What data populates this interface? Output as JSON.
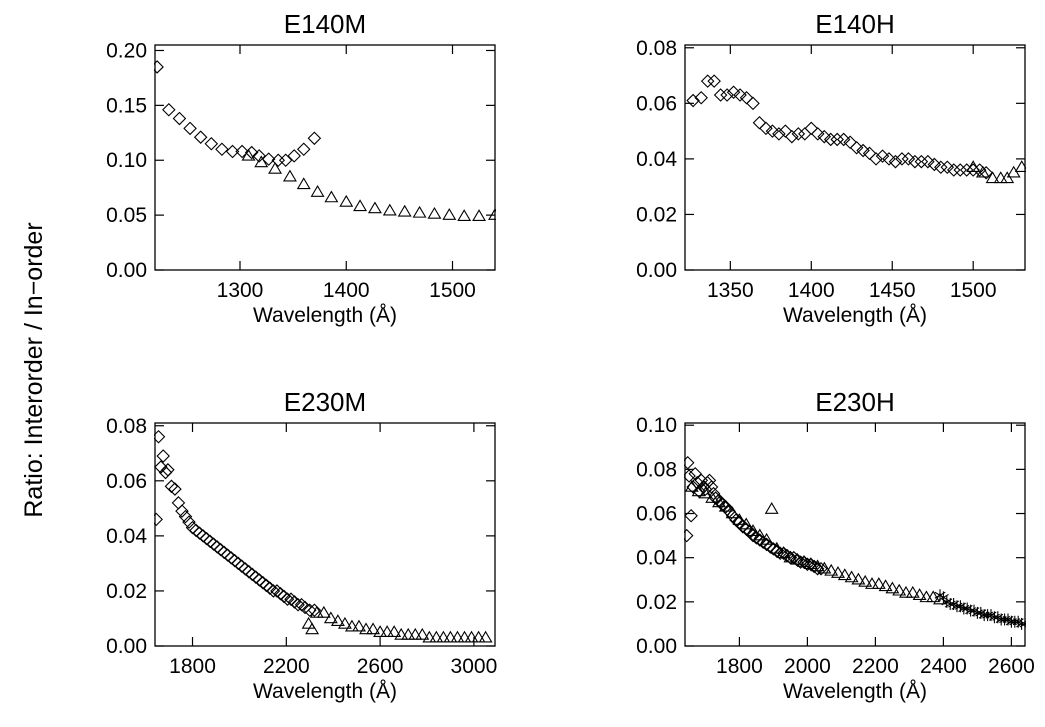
{
  "figure": {
    "ylabel": "Ratio:  Interorder / In−order"
  },
  "chart_data": [
    {
      "type": "scatter",
      "title": "E140M",
      "xlabel": "Wavelength (Å)",
      "ylabel": "",
      "xlim": [
        1220,
        1540
      ],
      "ylim": [
        0,
        0.205
      ],
      "xticks": [
        1300,
        1400,
        1500
      ],
      "xtick_labels": [
        "1300",
        "1400",
        "1500"
      ],
      "yticks": [
        0.0,
        0.05,
        0.1,
        0.15,
        0.2
      ],
      "ytick_labels": [
        "0.00",
        "0.05",
        "0.10",
        "0.15",
        "0.20"
      ],
      "grid": false,
      "series": [
        {
          "marker": "diamond",
          "x": [
            1222,
            1233,
            1243,
            1253,
            1263,
            1273,
            1283,
            1293,
            1302,
            1311,
            1318,
            1327,
            1336,
            1343,
            1351,
            1360,
            1370
          ],
          "y": [
            0.185,
            0.146,
            0.138,
            0.129,
            0.121,
            0.115,
            0.11,
            0.108,
            0.108,
            0.107,
            0.104,
            0.101,
            0.1,
            0.1,
            0.104,
            0.11,
            0.12
          ]
        },
        {
          "marker": "triangle",
          "x": [
            1308,
            1320,
            1333,
            1347,
            1360,
            1373,
            1386,
            1400,
            1413,
            1427,
            1441,
            1455,
            1469,
            1483,
            1497,
            1511,
            1525,
            1540
          ],
          "y": [
            0.104,
            0.098,
            0.092,
            0.085,
            0.078,
            0.071,
            0.066,
            0.062,
            0.058,
            0.056,
            0.054,
            0.053,
            0.052,
            0.051,
            0.05,
            0.049,
            0.049,
            0.05
          ]
        }
      ]
    },
    {
      "type": "scatter",
      "title": "E140H",
      "xlabel": "Wavelength (Å)",
      "ylabel": "",
      "xlim": [
        1322,
        1532
      ],
      "ylim": [
        0,
        0.081
      ],
      "xticks": [
        1350,
        1400,
        1450,
        1500
      ],
      "xtick_labels": [
        "1350",
        "1400",
        "1450",
        "1500"
      ],
      "yticks": [
        0.0,
        0.02,
        0.04,
        0.06,
        0.08
      ],
      "ytick_labels": [
        "0.00",
        "0.02",
        "0.04",
        "0.06",
        "0.08"
      ],
      "grid": false,
      "series": [
        {
          "marker": "diamond",
          "x": [
            1327,
            1332,
            1336,
            1340,
            1344,
            1348,
            1352,
            1356,
            1360,
            1364,
            1368,
            1372,
            1376,
            1380,
            1384,
            1388,
            1392,
            1396,
            1400,
            1404,
            1408,
            1412,
            1416,
            1420,
            1424,
            1428,
            1432,
            1436,
            1440,
            1444,
            1448,
            1452,
            1456,
            1460,
            1464,
            1468,
            1472,
            1476,
            1480,
            1484,
            1488,
            1492,
            1496,
            1500,
            1504,
            1508
          ],
          "y": [
            0.061,
            0.062,
            0.068,
            0.068,
            0.063,
            0.063,
            0.064,
            0.063,
            0.062,
            0.06,
            0.053,
            0.051,
            0.05,
            0.049,
            0.05,
            0.048,
            0.049,
            0.049,
            0.051,
            0.049,
            0.048,
            0.047,
            0.047,
            0.047,
            0.046,
            0.044,
            0.043,
            0.042,
            0.04,
            0.041,
            0.04,
            0.039,
            0.04,
            0.04,
            0.039,
            0.039,
            0.039,
            0.038,
            0.037,
            0.037,
            0.036,
            0.036,
            0.036,
            0.036,
            0.036,
            0.035
          ]
        },
        {
          "marker": "triangle",
          "x": [
            1500,
            1506,
            1512,
            1517,
            1521,
            1525,
            1530
          ],
          "y": [
            0.037,
            0.035,
            0.033,
            0.033,
            0.033,
            0.035,
            0.037
          ]
        }
      ]
    },
    {
      "type": "scatter",
      "title": "E230M",
      "xlabel": "Wavelength (Å)",
      "ylabel": "",
      "xlim": [
        1640,
        3090
      ],
      "ylim": [
        0,
        0.081
      ],
      "xticks": [
        1800,
        2200,
        2600,
        3000
      ],
      "xtick_labels": [
        "1800",
        "2200",
        "2600",
        "3000"
      ],
      "yticks": [
        0.0,
        0.02,
        0.04,
        0.06,
        0.08
      ],
      "ytick_labels": [
        "0.00",
        "0.02",
        "0.04",
        "0.06",
        "0.08"
      ],
      "grid": false,
      "series": [
        {
          "marker": "diamond",
          "x": [
            1645,
            1655,
            1665,
            1675,
            1685,
            1695,
            1710,
            1725,
            1740,
            1755,
            1770,
            1785,
            1800,
            1815,
            1830,
            1845,
            1860,
            1875,
            1890,
            1905,
            1920,
            1935,
            1950,
            1965,
            1980,
            1995,
            2010,
            2025,
            2040,
            2055,
            2070,
            2085,
            2100,
            2115,
            2130,
            2145,
            2160,
            2175,
            2190,
            2205,
            2220,
            2235,
            2250,
            2265,
            2280,
            2300,
            2320
          ],
          "y": [
            0.046,
            0.076,
            0.065,
            0.069,
            0.063,
            0.064,
            0.058,
            0.057,
            0.052,
            0.049,
            0.047,
            0.045,
            0.043,
            0.042,
            0.041,
            0.04,
            0.039,
            0.038,
            0.037,
            0.036,
            0.035,
            0.034,
            0.033,
            0.032,
            0.031,
            0.03,
            0.029,
            0.028,
            0.027,
            0.026,
            0.025,
            0.024,
            0.023,
            0.022,
            0.021,
            0.02,
            0.02,
            0.019,
            0.018,
            0.017,
            0.017,
            0.016,
            0.015,
            0.015,
            0.014,
            0.013,
            0.013
          ]
        },
        {
          "marker": "triangle",
          "x": [
            2295,
            2310,
            2330,
            2360,
            2390,
            2420,
            2450,
            2480,
            2510,
            2540,
            2570,
            2600,
            2630,
            2660,
            2690,
            2720,
            2750,
            2780,
            2810,
            2840,
            2870,
            2900,
            2930,
            2960,
            2990,
            3020,
            3050
          ],
          "y": [
            0.008,
            0.006,
            0.012,
            0.012,
            0.01,
            0.009,
            0.008,
            0.007,
            0.007,
            0.006,
            0.006,
            0.005,
            0.005,
            0.005,
            0.004,
            0.004,
            0.004,
            0.004,
            0.003,
            0.003,
            0.003,
            0.003,
            0.003,
            0.003,
            0.003,
            0.003,
            0.003
          ]
        }
      ]
    },
    {
      "type": "scatter",
      "title": "E230H",
      "xlabel": "Wavelength (Å)",
      "ylabel": "",
      "xlim": [
        1640,
        2640
      ],
      "ylim": [
        0,
        0.101
      ],
      "xticks": [
        1800,
        2000,
        2200,
        2400,
        2600
      ],
      "xtick_labels": [
        "1800",
        "2000",
        "2200",
        "2400",
        "2600"
      ],
      "yticks": [
        0.0,
        0.02,
        0.04,
        0.06,
        0.08,
        0.1
      ],
      "ytick_labels": [
        "0.00",
        "0.02",
        "0.04",
        "0.06",
        "0.08",
        "0.10"
      ],
      "grid": false,
      "series": [
        {
          "marker": "diamond",
          "x": [
            1645,
            1648,
            1652,
            1658,
            1664,
            1670,
            1676,
            1682,
            1688,
            1694,
            1700,
            1706,
            1712,
            1718,
            1724,
            1730,
            1740,
            1750,
            1760,
            1770,
            1780,
            1790,
            1800,
            1810,
            1820,
            1830,
            1840,
            1850,
            1860,
            1870,
            1880,
            1890,
            1900,
            1910,
            1920,
            1930,
            1940,
            1950,
            1960,
            1970,
            1980,
            1990,
            2000,
            2010,
            2020,
            2030,
            2040
          ],
          "y": [
            0.05,
            0.083,
            0.077,
            0.059,
            0.072,
            0.078,
            0.074,
            0.07,
            0.075,
            0.072,
            0.071,
            0.074,
            0.075,
            0.072,
            0.069,
            0.067,
            0.066,
            0.064,
            0.063,
            0.061,
            0.059,
            0.057,
            0.056,
            0.054,
            0.053,
            0.052,
            0.05,
            0.049,
            0.048,
            0.047,
            0.046,
            0.045,
            0.044,
            0.043,
            0.042,
            0.042,
            0.041,
            0.04,
            0.04,
            0.039,
            0.038,
            0.038,
            0.037,
            0.037,
            0.036,
            0.035,
            0.035
          ]
        },
        {
          "marker": "triangle",
          "x": [
            1660,
            1680,
            1700,
            1720,
            1740,
            1760,
            1780,
            1800,
            1820,
            1840,
            1860,
            1880,
            1895,
            1910,
            1930,
            1950,
            1970,
            1990,
            2010,
            2030,
            2050,
            2070,
            2090,
            2110,
            2130,
            2150,
            2170,
            2190,
            2210,
            2230,
            2250,
            2270,
            2290,
            2310,
            2330,
            2350,
            2370,
            2390
          ],
          "y": [
            0.072,
            0.07,
            0.069,
            0.067,
            0.065,
            0.063,
            0.06,
            0.057,
            0.055,
            0.052,
            0.05,
            0.048,
            0.062,
            0.044,
            0.042,
            0.04,
            0.039,
            0.038,
            0.037,
            0.036,
            0.035,
            0.034,
            0.033,
            0.032,
            0.031,
            0.03,
            0.029,
            0.028,
            0.028,
            0.027,
            0.026,
            0.025,
            0.024,
            0.024,
            0.023,
            0.022,
            0.022,
            0.021
          ]
        },
        {
          "marker": "asterisk",
          "x": [
            2390,
            2400,
            2410,
            2420,
            2430,
            2440,
            2450,
            2460,
            2470,
            2480,
            2490,
            2500,
            2510,
            2520,
            2530,
            2540,
            2550,
            2560,
            2570,
            2580,
            2590,
            2600,
            2610,
            2620,
            2630,
            2640
          ],
          "y": [
            0.023,
            0.022,
            0.02,
            0.019,
            0.019,
            0.018,
            0.018,
            0.017,
            0.017,
            0.016,
            0.016,
            0.015,
            0.015,
            0.014,
            0.014,
            0.014,
            0.013,
            0.013,
            0.012,
            0.012,
            0.012,
            0.011,
            0.011,
            0.011,
            0.01,
            0.01
          ]
        }
      ]
    }
  ]
}
